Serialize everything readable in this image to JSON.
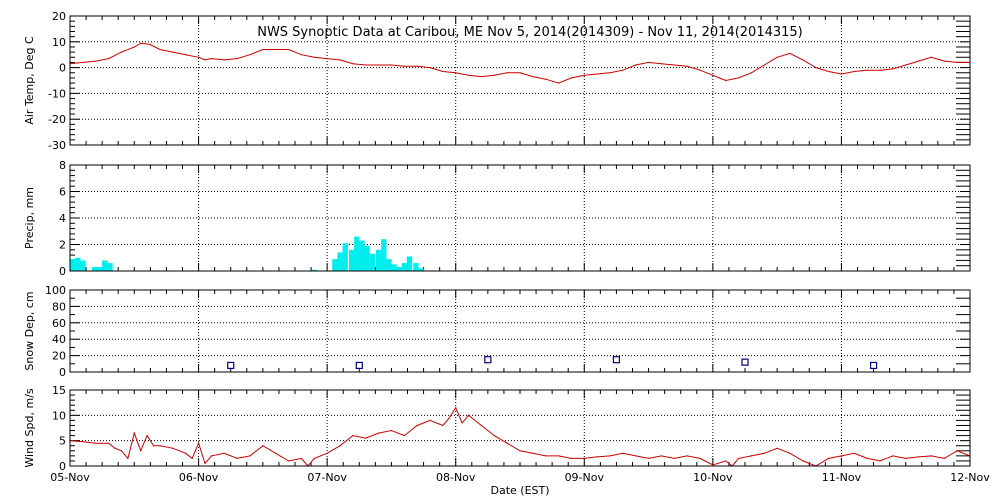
{
  "title": "NWS Synoptic Data at Caribou, ME   Nov  5, 2014(2014309) - Nov 11, 2014(2014315)",
  "xlabel": "Date (EST)",
  "colors": {
    "air_temp": "#cc0000",
    "precip": "#00eeee",
    "snow_marker": "#000080",
    "wind": "#cc0000",
    "grid": "#000000"
  },
  "chart_data": [
    {
      "type": "line",
      "name": "air-temp",
      "ylabel": "Air Temp, Deg C",
      "ylim": [
        -30,
        20
      ],
      "yticks": [
        -30,
        -20,
        -10,
        0,
        10,
        20
      ],
      "xlim": [
        0,
        7
      ],
      "xticks": [
        "05-Nov",
        "06-Nov",
        "07-Nov",
        "08-Nov",
        "09-Nov",
        "10-Nov",
        "11-Nov",
        "12-Nov"
      ],
      "grid": true,
      "series": [
        {
          "x": [
            0,
            0.1,
            0.2,
            0.3,
            0.4,
            0.5,
            0.55,
            0.62,
            0.7,
            0.8,
            0.9,
            1.0,
            1.05,
            1.1,
            1.2,
            1.3,
            1.4,
            1.5,
            1.6,
            1.7,
            1.8,
            1.9,
            2.0,
            2.1,
            2.2,
            2.3,
            2.4,
            2.5,
            2.6,
            2.7,
            2.8,
            2.9,
            3.0,
            3.1,
            3.2,
            3.3,
            3.4,
            3.5,
            3.6,
            3.7,
            3.8,
            3.9,
            4.0,
            4.1,
            4.2,
            4.3,
            4.4,
            4.5,
            4.6,
            4.7,
            4.8,
            4.9,
            5.0,
            5.05,
            5.1,
            5.2,
            5.3,
            5.4,
            5.5,
            5.6,
            5.7,
            5.8,
            5.9,
            6.0,
            6.1,
            6.2,
            6.3,
            6.4,
            6.5,
            6.6,
            6.7,
            6.8,
            6.9,
            7.0
          ],
          "y": [
            1.5,
            2,
            2.5,
            3.5,
            6,
            8,
            9.5,
            9,
            7,
            6,
            5,
            4,
            3,
            3.5,
            3,
            3.5,
            5,
            7,
            7,
            7,
            5,
            4,
            3.5,
            3,
            1.5,
            1,
            1,
            1,
            0.5,
            0.5,
            0,
            -1.5,
            -2,
            -3,
            -3.5,
            -3,
            -2,
            -2,
            -3.5,
            -4.5,
            -6,
            -4,
            -3,
            -2.5,
            -2,
            -1,
            1,
            2,
            1.5,
            1,
            0.5,
            -1,
            -3,
            -4,
            -5,
            -4,
            -2,
            1,
            4,
            5.5,
            3,
            0,
            -1.5,
            -2.5,
            -1.5,
            -1,
            -1,
            -0.5,
            1,
            2.5,
            4,
            2.5,
            2,
            2
          ]
        }
      ]
    },
    {
      "type": "bar",
      "name": "precip",
      "ylabel": "Precip, mm",
      "ylim": [
        0,
        8
      ],
      "yticks": [
        0,
        2,
        4,
        6,
        8
      ],
      "xlim": [
        0,
        7
      ],
      "grid": true,
      "bin_width": 0.041667,
      "bars": [
        [
          0.0,
          0.9
        ],
        [
          0.04,
          1.0
        ],
        [
          0.08,
          0.8
        ],
        [
          0.17,
          0.3
        ],
        [
          0.21,
          0.3
        ],
        [
          0.25,
          0.8
        ],
        [
          0.29,
          0.6
        ],
        [
          1.88,
          0.1
        ],
        [
          2.04,
          0.9
        ],
        [
          2.08,
          1.4
        ],
        [
          2.12,
          2.1
        ],
        [
          2.17,
          1.6
        ],
        [
          2.21,
          2.6
        ],
        [
          2.25,
          2.3
        ],
        [
          2.29,
          1.9
        ],
        [
          2.33,
          1.3
        ],
        [
          2.38,
          1.6
        ],
        [
          2.42,
          2.4
        ],
        [
          2.46,
          0.9
        ],
        [
          2.5,
          0.5
        ],
        [
          2.54,
          0.3
        ],
        [
          2.58,
          0.6
        ],
        [
          2.62,
          1.1
        ],
        [
          2.67,
          0.6
        ],
        [
          2.71,
          0.2
        ]
      ]
    },
    {
      "type": "scatter",
      "name": "snow-depth",
      "ylabel": "Snow Dep, cm",
      "ylim": [
        0,
        100
      ],
      "yticks": [
        0,
        20,
        40,
        60,
        80,
        100
      ],
      "minor_step": 10,
      "xlim": [
        0,
        7
      ],
      "grid": true,
      "points": [
        [
          1.25,
          8
        ],
        [
          2.25,
          8
        ],
        [
          3.25,
          15
        ],
        [
          4.25,
          15
        ],
        [
          5.25,
          12
        ],
        [
          6.25,
          8
        ]
      ]
    },
    {
      "type": "line",
      "name": "wind-speed",
      "ylabel": "Wind Spd, m/s",
      "ylim": [
        0,
        15
      ],
      "yticks": [
        0,
        5,
        10,
        15
      ],
      "xlim": [
        0,
        7
      ],
      "grid": true,
      "series": [
        {
          "x": [
            0,
            0.1,
            0.2,
            0.3,
            0.35,
            0.4,
            0.45,
            0.5,
            0.55,
            0.6,
            0.65,
            0.7,
            0.8,
            0.9,
            0.95,
            1.0,
            1.05,
            1.1,
            1.2,
            1.3,
            1.4,
            1.5,
            1.6,
            1.7,
            1.8,
            1.85,
            1.9,
            2.0,
            2.1,
            2.2,
            2.3,
            2.4,
            2.5,
            2.6,
            2.7,
            2.8,
            2.9,
            2.95,
            3.0,
            3.05,
            3.1,
            3.2,
            3.3,
            3.4,
            3.5,
            3.6,
            3.7,
            3.8,
            3.9,
            4.0,
            4.1,
            4.2,
            4.3,
            4.4,
            4.5,
            4.6,
            4.7,
            4.8,
            4.9,
            5.0,
            5.1,
            5.15,
            5.2,
            5.3,
            5.4,
            5.5,
            5.6,
            5.7,
            5.8,
            5.9,
            6.0,
            6.1,
            6.2,
            6.3,
            6.4,
            6.5,
            6.6,
            6.7,
            6.8,
            6.9,
            7.0
          ],
          "y": [
            5,
            4.8,
            4.5,
            4.5,
            3.5,
            3,
            1.5,
            6.5,
            3,
            6,
            4,
            4,
            3.5,
            2.5,
            1.5,
            4.5,
            0.5,
            2,
            2.5,
            1.5,
            2,
            4,
            2.5,
            1,
            1.5,
            0,
            1.5,
            2.5,
            4,
            6,
            5.5,
            6.5,
            7,
            6,
            8,
            9,
            8,
            9.5,
            11.5,
            8.5,
            10,
            8,
            6,
            4.5,
            3,
            2.5,
            2,
            2,
            1.5,
            1.5,
            1.8,
            2,
            2.5,
            2,
            1.5,
            2,
            1.5,
            2,
            1.5,
            0.2,
            1,
            0,
            1.5,
            2,
            2.5,
            3.5,
            2.5,
            1,
            0,
            1.5,
            2,
            2.5,
            1.5,
            1,
            2,
            1.5,
            1.8,
            2,
            1.5,
            3,
            2
          ]
        }
      ]
    }
  ]
}
